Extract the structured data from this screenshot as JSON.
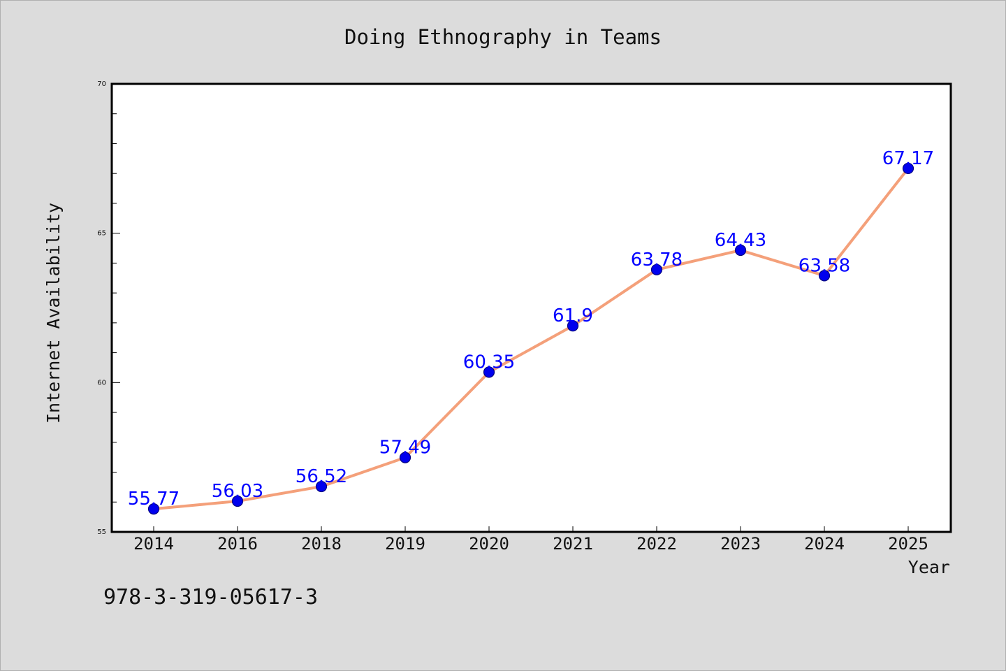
{
  "chart_data": {
    "type": "line",
    "title": "Doing Ethnography in Teams",
    "xlabel": "Year",
    "ylabel": "Internet Availability",
    "categories": [
      "2014",
      "2016",
      "2018",
      "2019",
      "2020",
      "2021",
      "2022",
      "2023",
      "2024",
      "2025"
    ],
    "series": [
      {
        "values": [
          55.77,
          56.03,
          56.52,
          57.49,
          60.35,
          61.9,
          63.78,
          64.43,
          63.58,
          67.17
        ],
        "data_labels": [
          "55.77",
          "56.03",
          "56.52",
          "57.49",
          "60.35",
          "61.9",
          "63.78",
          "64.43",
          "63.58",
          "67.17"
        ]
      }
    ],
    "ylim": [
      55,
      70
    ],
    "y_major_ticks": [
      55,
      60,
      65,
      70
    ],
    "y_tick_labels": [
      "55",
      "60",
      "65",
      "70"
    ],
    "y_minor_step": 1,
    "grid": false,
    "colors": {
      "line": "#f4a07a",
      "marker": "#0000ee",
      "marker_edge": "#000080",
      "data_label": "#0000ff",
      "background": "#dcdcdc",
      "plot_background": "#ffffff"
    },
    "footnote": "978-3-319-05617-3"
  }
}
